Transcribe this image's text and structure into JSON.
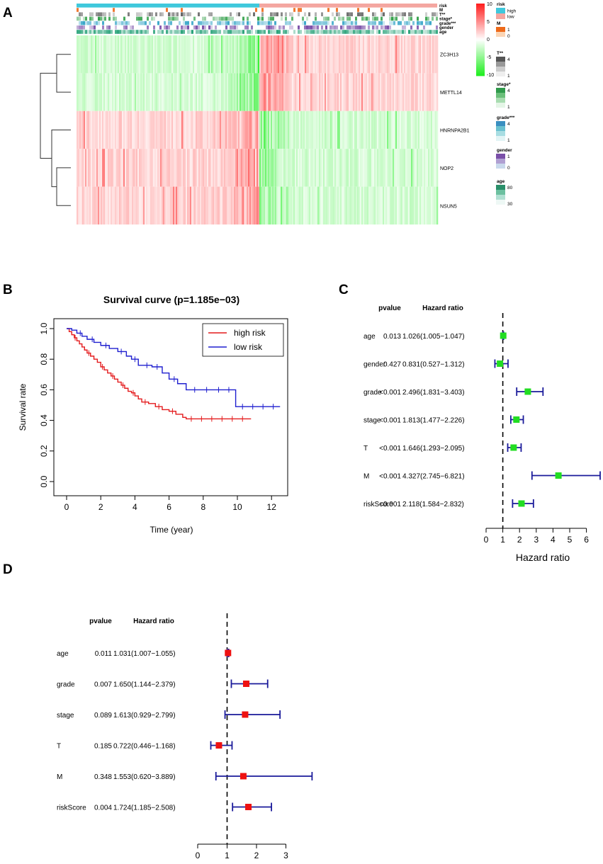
{
  "panel_labels": {
    "a": "A",
    "b": "B",
    "c": "C",
    "d": "D"
  },
  "colors": {
    "heat_high": "#ff2020",
    "heat_low": "#22ee22",
    "risk_high": "#3fc8dc",
    "risk_low": "#f4a6a0",
    "hr_green": "#22dd22",
    "hr_red": "#ee1111",
    "ci_line": "#1a1a9a",
    "km_high": "#e41a1c",
    "km_low": "#1f1fcf"
  },
  "chart_data": [
    {
      "id": "A",
      "type": "heatmap",
      "genes": [
        "ZC3H13",
        "METTL14",
        "HNRNPA2B1",
        "NOP2",
        "NSUN5"
      ],
      "annotation_tracks": [
        "risk",
        "M",
        "T**",
        "stage*",
        "grade***",
        "gender",
        "age"
      ],
      "color_scale": {
        "ticks": [
          10,
          5,
          0,
          -5,
          -10
        ],
        "max": 10,
        "min": -10
      },
      "legend": [
        {
          "title": "risk",
          "levels": [
            "high",
            "low"
          ]
        },
        {
          "title": "M",
          "levels": [
            "1",
            "0"
          ]
        },
        {
          "title": "T**",
          "levels": [
            "4",
            "1"
          ]
        },
        {
          "title": "stage*",
          "levels": [
            "4",
            "1"
          ]
        },
        {
          "title": "grade***",
          "levels": [
            "4",
            "1"
          ]
        },
        {
          "title": "gender",
          "levels": [
            "1",
            "0"
          ]
        },
        {
          "title": "age",
          "levels": [
            "80",
            "30"
          ]
        }
      ]
    },
    {
      "id": "B",
      "type": "line",
      "title": "Survival curve (p=1.185e−03)",
      "xlabel": "Time (year)",
      "ylabel": "Survival rate",
      "xlim": [
        0,
        12.5
      ],
      "ylim": [
        0,
        1
      ],
      "xticks": [
        "0",
        "2",
        "4",
        "6",
        "8",
        "10",
        "12"
      ],
      "yticks": [
        "0.0",
        "0.2",
        "0.4",
        "0.6",
        "0.8",
        "1.0"
      ],
      "legend_position": "top-right",
      "series": [
        {
          "name": "high risk",
          "x": [
            0,
            0.15,
            0.3,
            0.45,
            0.6,
            0.75,
            0.9,
            1.05,
            1.2,
            1.4,
            1.6,
            1.8,
            2.0,
            2.2,
            2.4,
            2.6,
            2.8,
            3.0,
            3.2,
            3.4,
            3.6,
            3.8,
            4.0,
            4.2,
            4.4,
            4.8,
            5.2,
            5.6,
            6.0,
            6.4,
            6.8,
            7.0,
            10.8
          ],
          "y": [
            1.0,
            0.98,
            0.96,
            0.94,
            0.92,
            0.9,
            0.88,
            0.86,
            0.84,
            0.82,
            0.8,
            0.78,
            0.75,
            0.73,
            0.71,
            0.69,
            0.67,
            0.65,
            0.63,
            0.61,
            0.59,
            0.58,
            0.56,
            0.54,
            0.52,
            0.51,
            0.49,
            0.47,
            0.46,
            0.44,
            0.42,
            0.41,
            0.41
          ],
          "censor_x": [
            0.5,
            1.3,
            2.1,
            2.7,
            3.3,
            3.9,
            4.6,
            5.4,
            6.2,
            7.3,
            7.9,
            8.5,
            9.1,
            9.7,
            10.3
          ]
        },
        {
          "name": "low risk",
          "x": [
            0,
            0.3,
            0.6,
            0.9,
            1.2,
            1.6,
            2.0,
            2.5,
            3.0,
            3.5,
            3.8,
            4.2,
            5.0,
            5.6,
            6.0,
            6.5,
            7.0,
            9.9,
            12.5
          ],
          "y": [
            1.0,
            0.99,
            0.97,
            0.95,
            0.93,
            0.91,
            0.89,
            0.87,
            0.85,
            0.82,
            0.8,
            0.76,
            0.75,
            0.71,
            0.67,
            0.64,
            0.6,
            0.49,
            0.49
          ],
          "censor_x": [
            0.8,
            1.5,
            2.3,
            3.2,
            4.0,
            4.7,
            5.3,
            6.3,
            7.5,
            8.2,
            8.9,
            9.5,
            10.3,
            10.9,
            11.5,
            12.1
          ]
        }
      ]
    },
    {
      "id": "C",
      "type": "scatter",
      "subtype": "forest",
      "header": {
        "pvalue": "pvalue",
        "hr": "Hazard ratio"
      },
      "xlabel": "Hazard ratio",
      "xlim": [
        0,
        6.8
      ],
      "xticks": [
        0,
        1,
        2,
        3,
        4,
        5,
        6
      ],
      "reference": 1,
      "rows": [
        {
          "label": "age",
          "p": "0.013",
          "text": "1.026(1.005−1.047)",
          "hr": 1.026,
          "lo": 1.005,
          "hi": 1.047
        },
        {
          "label": "gender",
          "p": "0.427",
          "text": "0.831(0.527−1.312)",
          "hr": 0.831,
          "lo": 0.527,
          "hi": 1.312
        },
        {
          "label": "grade",
          "p": "<0.001",
          "text": "2.496(1.831−3.403)",
          "hr": 2.496,
          "lo": 1.831,
          "hi": 3.403
        },
        {
          "label": "stage",
          "p": "<0.001",
          "text": "1.813(1.477−2.226)",
          "hr": 1.813,
          "lo": 1.477,
          "hi": 2.226
        },
        {
          "label": "T",
          "p": "<0.001",
          "text": "1.646(1.293−2.095)",
          "hr": 1.646,
          "lo": 1.293,
          "hi": 2.095
        },
        {
          "label": "M",
          "p": "<0.001",
          "text": "4.327(2.745−6.821)",
          "hr": 4.327,
          "lo": 2.745,
          "hi": 6.821
        },
        {
          "label": "riskScore",
          "p": "<0.001",
          "text": "2.118(1.584−2.832)",
          "hr": 2.118,
          "lo": 1.584,
          "hi": 2.832
        }
      ]
    },
    {
      "id": "D",
      "type": "scatter",
      "subtype": "forest",
      "header": {
        "pvalue": "pvalue",
        "hr": "Hazard ratio"
      },
      "xlabel": "Hazard ratio",
      "xlim": [
        0,
        3
      ],
      "xticks": [
        0,
        1,
        2,
        3
      ],
      "reference": 1,
      "rows": [
        {
          "label": "age",
          "p": "0.011",
          "text": "1.031(1.007−1.055)",
          "hr": 1.031,
          "lo": 1.007,
          "hi": 1.055
        },
        {
          "label": "grade",
          "p": "0.007",
          "text": "1.650(1.144−2.379)",
          "hr": 1.65,
          "lo": 1.144,
          "hi": 2.379
        },
        {
          "label": "stage",
          "p": "0.089",
          "text": "1.613(0.929−2.799)",
          "hr": 1.613,
          "lo": 0.929,
          "hi": 2.799
        },
        {
          "label": "T",
          "p": "0.185",
          "text": "0.722(0.446−1.168)",
          "hr": 0.722,
          "lo": 0.446,
          "hi": 1.168
        },
        {
          "label": "M",
          "p": "0.348",
          "text": "1.553(0.620−3.889)",
          "hr": 1.553,
          "lo": 0.62,
          "hi": 3.889
        },
        {
          "label": "riskScore",
          "p": "0.004",
          "text": "1.724(1.185−2.508)",
          "hr": 1.724,
          "lo": 1.185,
          "hi": 2.508
        }
      ]
    }
  ]
}
